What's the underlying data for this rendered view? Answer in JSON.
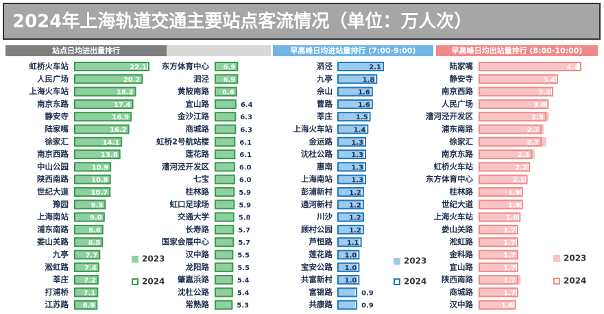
{
  "title": "2024年上海轨道交通主要站点客流情况（单位：万人次）",
  "chart_data": [
    {
      "type": "bar",
      "orientation": "horizontal",
      "title": "站点日均进出量排行",
      "categories": [
        "虹桥火车站",
        "人民广场",
        "上海火车站",
        "南京东路",
        "静安寺",
        "陆家嘴",
        "徐家汇",
        "南京西路",
        "中山公园",
        "陕西南路",
        "世纪大道",
        "豫园",
        "上海南站",
        "浦东南路",
        "娄山关路",
        "九亭",
        "淞虹路",
        "莘庄",
        "打浦桥",
        "江苏路",
        "东方体育中心",
        "泗泾",
        "黄陂南路",
        "宜山路",
        "金沙江路",
        "商城路",
        "虹桥2号航站楼",
        "莲花路",
        "漕河泾开发区",
        "七宝",
        "桂林路",
        "虹口足球场",
        "交通大学",
        "长寿路",
        "国家会展中心",
        "汉中路",
        "龙阳路",
        "肇嘉浜路",
        "沈杜公路",
        "常熟路"
      ],
      "series": [
        {
          "name": "2023",
          "color": "#8fd19e",
          "values": [
            21.5,
            19.8,
            17.9,
            17.0,
            16.5,
            16.0,
            13.8,
            13.2,
            10.6,
            10.5,
            10.4,
            9.0,
            8.8,
            8.4,
            8.3,
            7.5,
            7.2,
            7.0,
            6.9,
            6.7,
            6.7,
            6.6,
            6.4,
            6.2,
            6.1,
            6.1,
            5.9,
            5.9,
            5.8,
            5.8,
            5.7,
            5.7,
            5.6,
            5.5,
            5.5,
            5.3,
            5.3,
            5.2,
            5.2,
            5.1
          ]
        },
        {
          "name": "2024",
          "color": "#3a9a4f",
          "values": [
            22.1,
            20.2,
            18.2,
            17.4,
            16.9,
            16.2,
            14.1,
            13.6,
            10.9,
            10.8,
            10.7,
            9.3,
            9.0,
            8.6,
            8.5,
            7.7,
            7.4,
            7.2,
            7.1,
            6.9,
            6.9,
            6.9,
            6.6,
            6.4,
            6.3,
            6.3,
            6.1,
            6.1,
            6.0,
            6.0,
            5.9,
            5.9,
            5.8,
            5.7,
            5.7,
            5.5,
            5.5,
            5.4,
            5.4,
            5.3
          ],
          "value_labels": [
            "22.1",
            "20.2",
            "18.2",
            "17.4",
            "16.9",
            "16.2",
            "14.1",
            "13.6",
            "10.9",
            "10.8",
            "10.7",
            "9.3",
            "9.0",
            "8.6",
            "8.5",
            "7.7",
            "7.4",
            "7.2",
            "7.1",
            "6.9",
            "6.9",
            "6.9",
            "6.6",
            "6.4",
            "6.3",
            "6.3",
            "6.1",
            "6.1",
            "6.0",
            "6.0",
            "5.9",
            "5.9",
            "5.8",
            "5.7",
            "5.7",
            "5.5",
            "5.5",
            "5.4",
            "5.4",
            "5.3"
          ]
        }
      ]
    },
    {
      "type": "bar",
      "orientation": "horizontal",
      "title": "早高峰日均进站量排行 (7:00-9:00)",
      "categories": [
        "泗泾",
        "九亭",
        "佘山",
        "曹路",
        "莘庄",
        "上海火车站",
        "金运路",
        "沈杜公路",
        "惠南",
        "上海南站",
        "彭浦新村",
        "通河新村",
        "川沙",
        "顾村公园",
        "芦恒路",
        "莲花路",
        "宝安公路",
        "共富新村",
        "富锦路",
        "共康路"
      ],
      "series": [
        {
          "name": "2023",
          "color": "#9ccbee",
          "values": [
            2.0,
            1.7,
            1.5,
            1.5,
            1.4,
            1.3,
            1.2,
            1.2,
            1.2,
            1.2,
            1.1,
            1.1,
            1.2,
            1.1,
            1.0,
            0.9,
            0.9,
            0.9,
            0.8,
            0.8
          ]
        },
        {
          "name": "2024",
          "color": "#1f78c1",
          "values": [
            2.1,
            1.8,
            1.6,
            1.6,
            1.5,
            1.4,
            1.3,
            1.3,
            1.3,
            1.3,
            1.2,
            1.2,
            1.2,
            1.2,
            1.1,
            1.0,
            1.0,
            1.0,
            0.9,
            0.9
          ],
          "value_labels": [
            "2.1",
            "1.8",
            "1.6",
            "1.6",
            "1.5",
            "1.4",
            "1.3",
            "1.3",
            "1.3",
            "1.3",
            "1.2",
            "1.2",
            "1.2",
            "1.2",
            "1.1",
            "1.0",
            "1.0",
            "1.0",
            "0.9",
            "0.9"
          ]
        }
      ]
    },
    {
      "type": "bar",
      "orientation": "horizontal",
      "title": "早高峰日均出站量排行 (8:00-10:00)",
      "categories": [
        "陆家嘴",
        "静安寺",
        "南京西路",
        "人民广场",
        "漕河泾开发区",
        "浦东南路",
        "徐家汇",
        "南京东路",
        "虹桥火车站",
        "东方体育中心",
        "桂林路",
        "世纪大道",
        "上海火车站",
        "娄山关路",
        "淞虹路",
        "金科路",
        "宜山路",
        "陕西南路",
        "商城路",
        "汉中路"
      ],
      "series": [
        {
          "name": "2023",
          "color": "#fbc4c4",
          "values": [
            4.2,
            3.3,
            3.1,
            2.9,
            3.0,
            2.8,
            2.9,
            2.4,
            2.1,
            2.0,
            1.8,
            1.8,
            1.7,
            1.6,
            1.6,
            1.7,
            1.6,
            1.8,
            1.6,
            1.5
          ]
        },
        {
          "name": "2024",
          "color": "#f08a8a",
          "values": [
            4.4,
            3.4,
            3.2,
            3.0,
            2.9,
            2.7,
            2.7,
            2.3,
            2.2,
            2.1,
            1.9,
            1.9,
            1.8,
            1.7,
            1.7,
            1.7,
            1.7,
            1.7,
            1.7,
            1.6
          ],
          "value_labels": [
            "4.4",
            "3.4",
            "3.2",
            "3.0",
            "2.9",
            "2.7",
            "2.7",
            "2.3",
            "2.2",
            "2.1",
            "1.9",
            "1.9",
            "1.8",
            "1.7",
            "1.7",
            "1.7",
            "1.7",
            "1.7",
            "1.7",
            "1.6"
          ]
        }
      ]
    }
  ]
}
